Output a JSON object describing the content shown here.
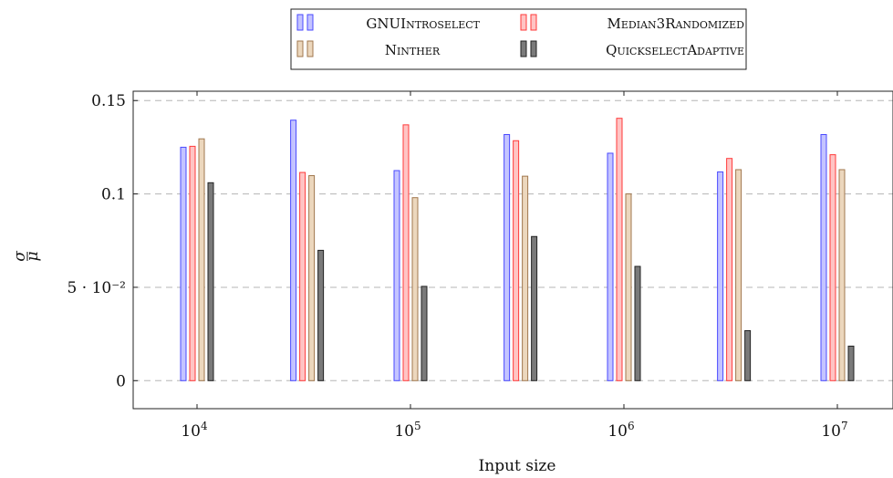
{
  "chart_data": {
    "type": "bar",
    "xlabel": "Input size",
    "ylabel": "σ/μ",
    "ylabel_num": "σ",
    "ylabel_den": "μ",
    "ylim": [
      -0.015,
      0.155
    ],
    "yticks": [
      {
        "value": 0,
        "label": "0"
      },
      {
        "value": 0.05,
        "label": "5 · 10⁻²"
      },
      {
        "value": 0.1,
        "label": "0.1"
      },
      {
        "value": 0.15,
        "label": "0.15"
      }
    ],
    "x_scale": "log",
    "xticks": [
      {
        "value": 10000,
        "base": "10",
        "exp": "4"
      },
      {
        "value": 100000,
        "base": "10",
        "exp": "5"
      },
      {
        "value": 1000000,
        "base": "10",
        "exp": "6"
      },
      {
        "value": 10000000,
        "base": "10",
        "exp": "7"
      }
    ],
    "x": [
      10000,
      32768,
      100000,
      327680,
      1000000,
      3276800,
      10000000
    ],
    "grid": "horizontal dashed",
    "legend_position": "top-center",
    "series": [
      {
        "name": "GNUIntroselect",
        "color": "#4a4aff",
        "fill": "#c4c4ff",
        "values": [
          0.125,
          0.1395,
          0.1125,
          0.1318,
          0.1218,
          0.1118,
          0.1318
        ]
      },
      {
        "name": "Median3Randomized",
        "color": "#ff3a3a",
        "fill": "#ffc4c4",
        "values": [
          0.1255,
          0.1115,
          0.137,
          0.1285,
          0.1405,
          0.119,
          0.121
        ]
      },
      {
        "name": "Ninther",
        "color": "#a0774e",
        "fill": "#ecd7bd",
        "values": [
          0.1295,
          0.1098,
          0.098,
          0.1095,
          0.1,
          0.113,
          0.113
        ]
      },
      {
        "name": "QuickselectAdaptive",
        "color": "#222222",
        "fill": "#7a7a7a",
        "values": [
          0.106,
          0.0698,
          0.0505,
          0.0772,
          0.0612,
          0.0268,
          0.0185
        ]
      }
    ]
  }
}
